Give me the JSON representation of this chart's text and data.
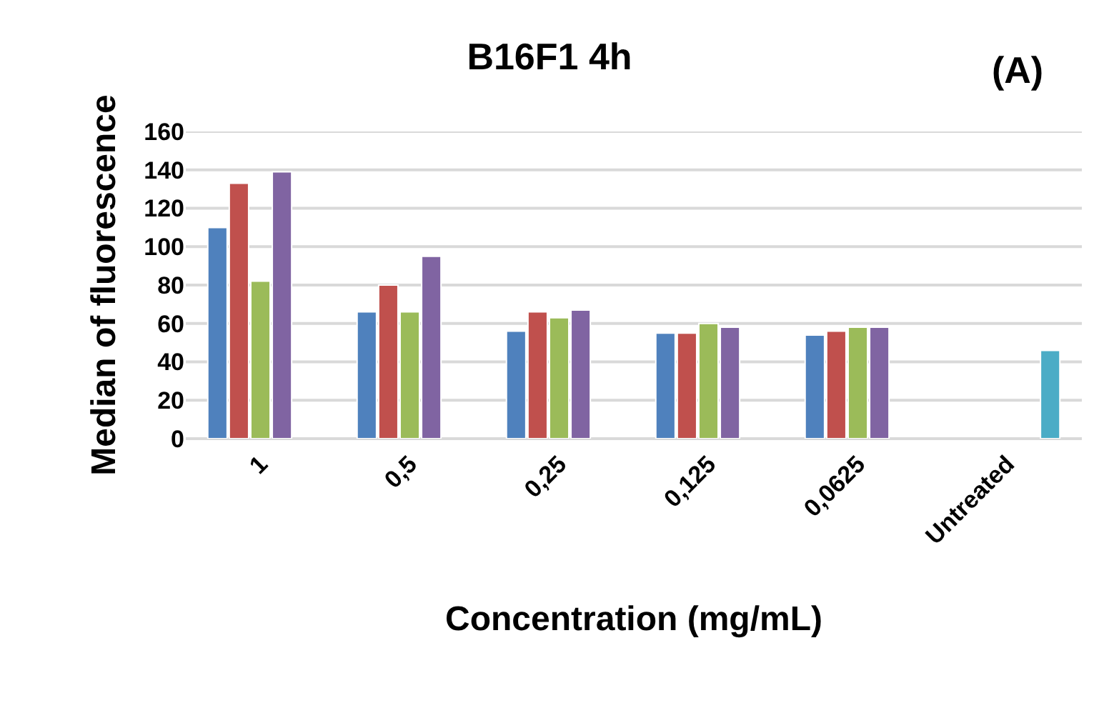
{
  "chart_data": {
    "type": "bar",
    "title": "B16F1 4h",
    "xlabel": "Concentration (mg/mL)",
    "ylabel": "Median of fluorescence",
    "annotations": [
      "(A)"
    ],
    "categories": [
      "1",
      "0,5",
      "0,25",
      "0,125",
      "0,0625",
      "Untreated"
    ],
    "series": [
      {
        "color": "#4f81bd",
        "values": [
          110,
          66,
          56,
          55,
          54,
          null
        ]
      },
      {
        "color": "#c0504d",
        "values": [
          133,
          80,
          66,
          55,
          56,
          null
        ]
      },
      {
        "color": "#9bbb59",
        "values": [
          82,
          66,
          63,
          60,
          58,
          null
        ]
      },
      {
        "color": "#8064a2",
        "values": [
          139,
          95,
          67,
          58,
          58,
          null
        ]
      },
      {
        "color": "#4bacc6",
        "values": [
          null,
          null,
          null,
          null,
          null,
          46
        ]
      }
    ],
    "ylim": [
      0,
      160
    ],
    "yticks": [
      0,
      20,
      40,
      60,
      80,
      100,
      120,
      140,
      160
    ],
    "grid": "y"
  }
}
